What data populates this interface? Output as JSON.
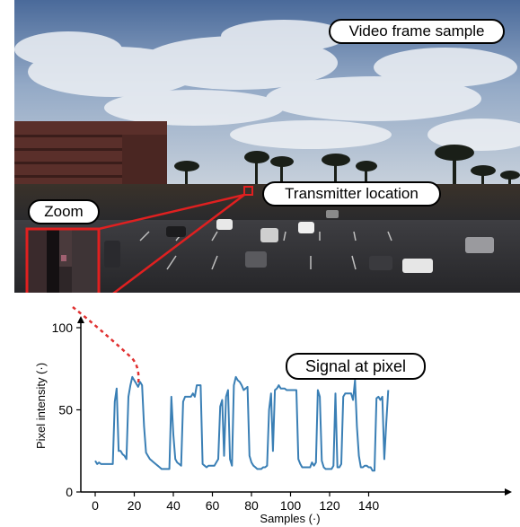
{
  "photo": {
    "caption": "Video frame sample",
    "transmitter_label": "Transmitter location",
    "zoom_label": "Zoom"
  },
  "signal_label": "Signal at pixel",
  "colors": {
    "signal_line": "#3a7fb5",
    "highlight": "#e02020",
    "connector_dotted": "#e03030"
  },
  "chart_data": {
    "type": "line",
    "title": "",
    "xlabel": "Samples (·)",
    "ylabel": "Pixel intensity (·)",
    "xlim": [
      0,
      152
    ],
    "ylim": [
      0,
      100
    ],
    "xticks": [
      0,
      20,
      40,
      60,
      80,
      100,
      120,
      140
    ],
    "yticks": [
      0,
      50,
      100
    ],
    "grid": false,
    "series": [
      {
        "x": [
          0,
          1,
          2,
          3,
          4,
          5,
          6,
          7,
          8,
          9,
          10,
          11,
          12,
          13,
          14,
          15,
          16,
          17,
          18,
          19,
          20,
          21,
          22,
          23,
          24,
          25,
          26,
          27,
          28,
          29,
          30,
          31,
          32,
          33,
          34,
          35,
          36,
          37,
          38,
          39,
          40,
          41,
          42,
          43,
          44,
          45,
          46,
          47,
          48,
          49,
          50,
          51,
          52,
          53,
          54,
          55,
          56,
          57,
          58,
          59,
          60,
          61,
          62,
          63,
          64,
          65,
          66,
          67,
          68,
          69,
          70,
          71,
          72,
          73,
          74,
          75,
          76,
          77,
          78,
          79,
          80,
          81,
          82,
          83,
          84,
          85,
          86,
          87,
          88,
          89,
          90,
          91,
          92,
          93,
          94,
          95,
          96,
          97,
          98,
          99,
          100,
          101,
          102,
          103,
          104,
          105,
          106,
          107,
          108,
          109,
          110,
          111,
          112,
          113,
          114,
          115,
          116,
          117,
          118,
          119,
          120,
          121,
          122,
          123,
          124,
          125,
          126,
          127,
          128,
          129,
          130,
          131,
          132,
          133,
          134,
          135,
          136,
          137,
          138,
          139,
          140,
          141,
          142,
          143,
          144,
          145,
          146,
          147,
          148,
          149,
          150
        ],
        "values": [
          19,
          17,
          18,
          17,
          17,
          17,
          17,
          17,
          17,
          17,
          55,
          63,
          25,
          25,
          23,
          22,
          20,
          58,
          65,
          70,
          68,
          66,
          64,
          67,
          65,
          40,
          24,
          22,
          20,
          19,
          18,
          17,
          16,
          15,
          14,
          14,
          14,
          14,
          14,
          58,
          35,
          20,
          18,
          17,
          16,
          55,
          58,
          58,
          58,
          58,
          60,
          58,
          65,
          65,
          65,
          17,
          16,
          15,
          16,
          16,
          16,
          16,
          18,
          20,
          52,
          56,
          22,
          58,
          62,
          20,
          16,
          65,
          70,
          68,
          67,
          65,
          62,
          63,
          64,
          22,
          18,
          16,
          15,
          14,
          14,
          14,
          15,
          15,
          16,
          50,
          60,
          25,
          62,
          63,
          65,
          63,
          63,
          63,
          62,
          62,
          62,
          62,
          62,
          62,
          20,
          17,
          15,
          15,
          15,
          15,
          15,
          18,
          16,
          18,
          62,
          58,
          19,
          15,
          14,
          14,
          14,
          14,
          16,
          60,
          15,
          15,
          17,
          58,
          60,
          60,
          60,
          60,
          56,
          68,
          40,
          22,
          15,
          15,
          16,
          16,
          15,
          15,
          13,
          13,
          57,
          58,
          56,
          58,
          20,
          42,
          62
        ]
      }
    ]
  }
}
